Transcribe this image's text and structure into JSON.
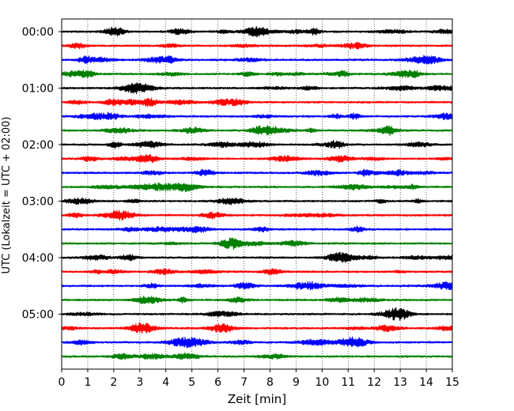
{
  "chart_data": {
    "type": "line",
    "title": "",
    "xlabel": "Zeit  [min]",
    "ylabel": "UTC (Lokalzeit = UTC + 02:00)",
    "xlim": [
      0,
      15
    ],
    "x_ticks": [
      "0",
      "1",
      "2",
      "3",
      "4",
      "5",
      "6",
      "7",
      "8",
      "9",
      "10",
      "11",
      "12",
      "13",
      "14",
      "15"
    ],
    "y_ticks": [
      "00:00",
      "01:00",
      "02:00",
      "03:00",
      "04:00",
      "05:00"
    ],
    "grid": "vertical-dotted",
    "trace_interval_minutes": 15,
    "trace_count": 24,
    "trace_colors": [
      "#000000",
      "#ff0000",
      "#0000ff",
      "#008000"
    ]
  }
}
